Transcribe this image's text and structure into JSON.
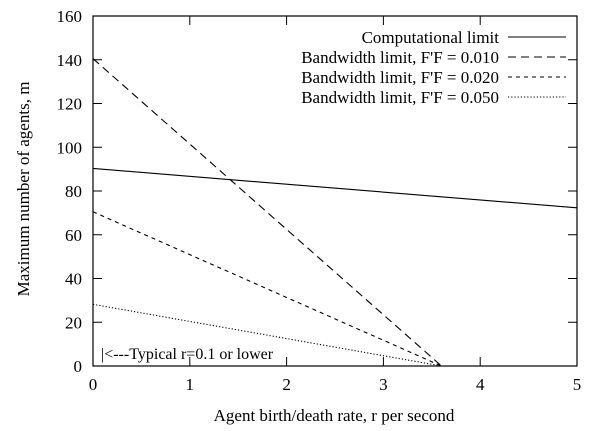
{
  "chart_data": {
    "type": "line",
    "title": "",
    "xlabel": "Agent birth/death rate, r per second",
    "ylabel": "Maximum number of agents, m",
    "xlim": [
      0,
      5
    ],
    "ylim": [
      0,
      160
    ],
    "xticks": [
      "0",
      "1",
      "2",
      "3",
      "4",
      "5"
    ],
    "yticks": [
      "0",
      "20",
      "40",
      "60",
      "80",
      "100",
      "120",
      "140",
      "160"
    ],
    "grid": false,
    "legend_position": "top-right",
    "annotation": "|<---Typical r=0.1 or lower",
    "series": [
      {
        "name": "Computational limit",
        "dash": "solid",
        "x": [
          0,
          5
        ],
        "y": [
          90.3,
          72.3
        ]
      },
      {
        "name": "Bandwidth limit, F'F = 0.010",
        "dash": "dashed",
        "x": [
          0,
          3.6
        ],
        "y": [
          140.5,
          0
        ]
      },
      {
        "name": "Bandwidth limit, F'F = 0.020",
        "dash": "short-dashed",
        "x": [
          0,
          3.6
        ],
        "y": [
          70.5,
          0
        ]
      },
      {
        "name": "Bandwidth limit, F'F = 0.050",
        "dash": "dotted",
        "x": [
          0,
          3.6
        ],
        "y": [
          28.2,
          0
        ]
      }
    ]
  }
}
